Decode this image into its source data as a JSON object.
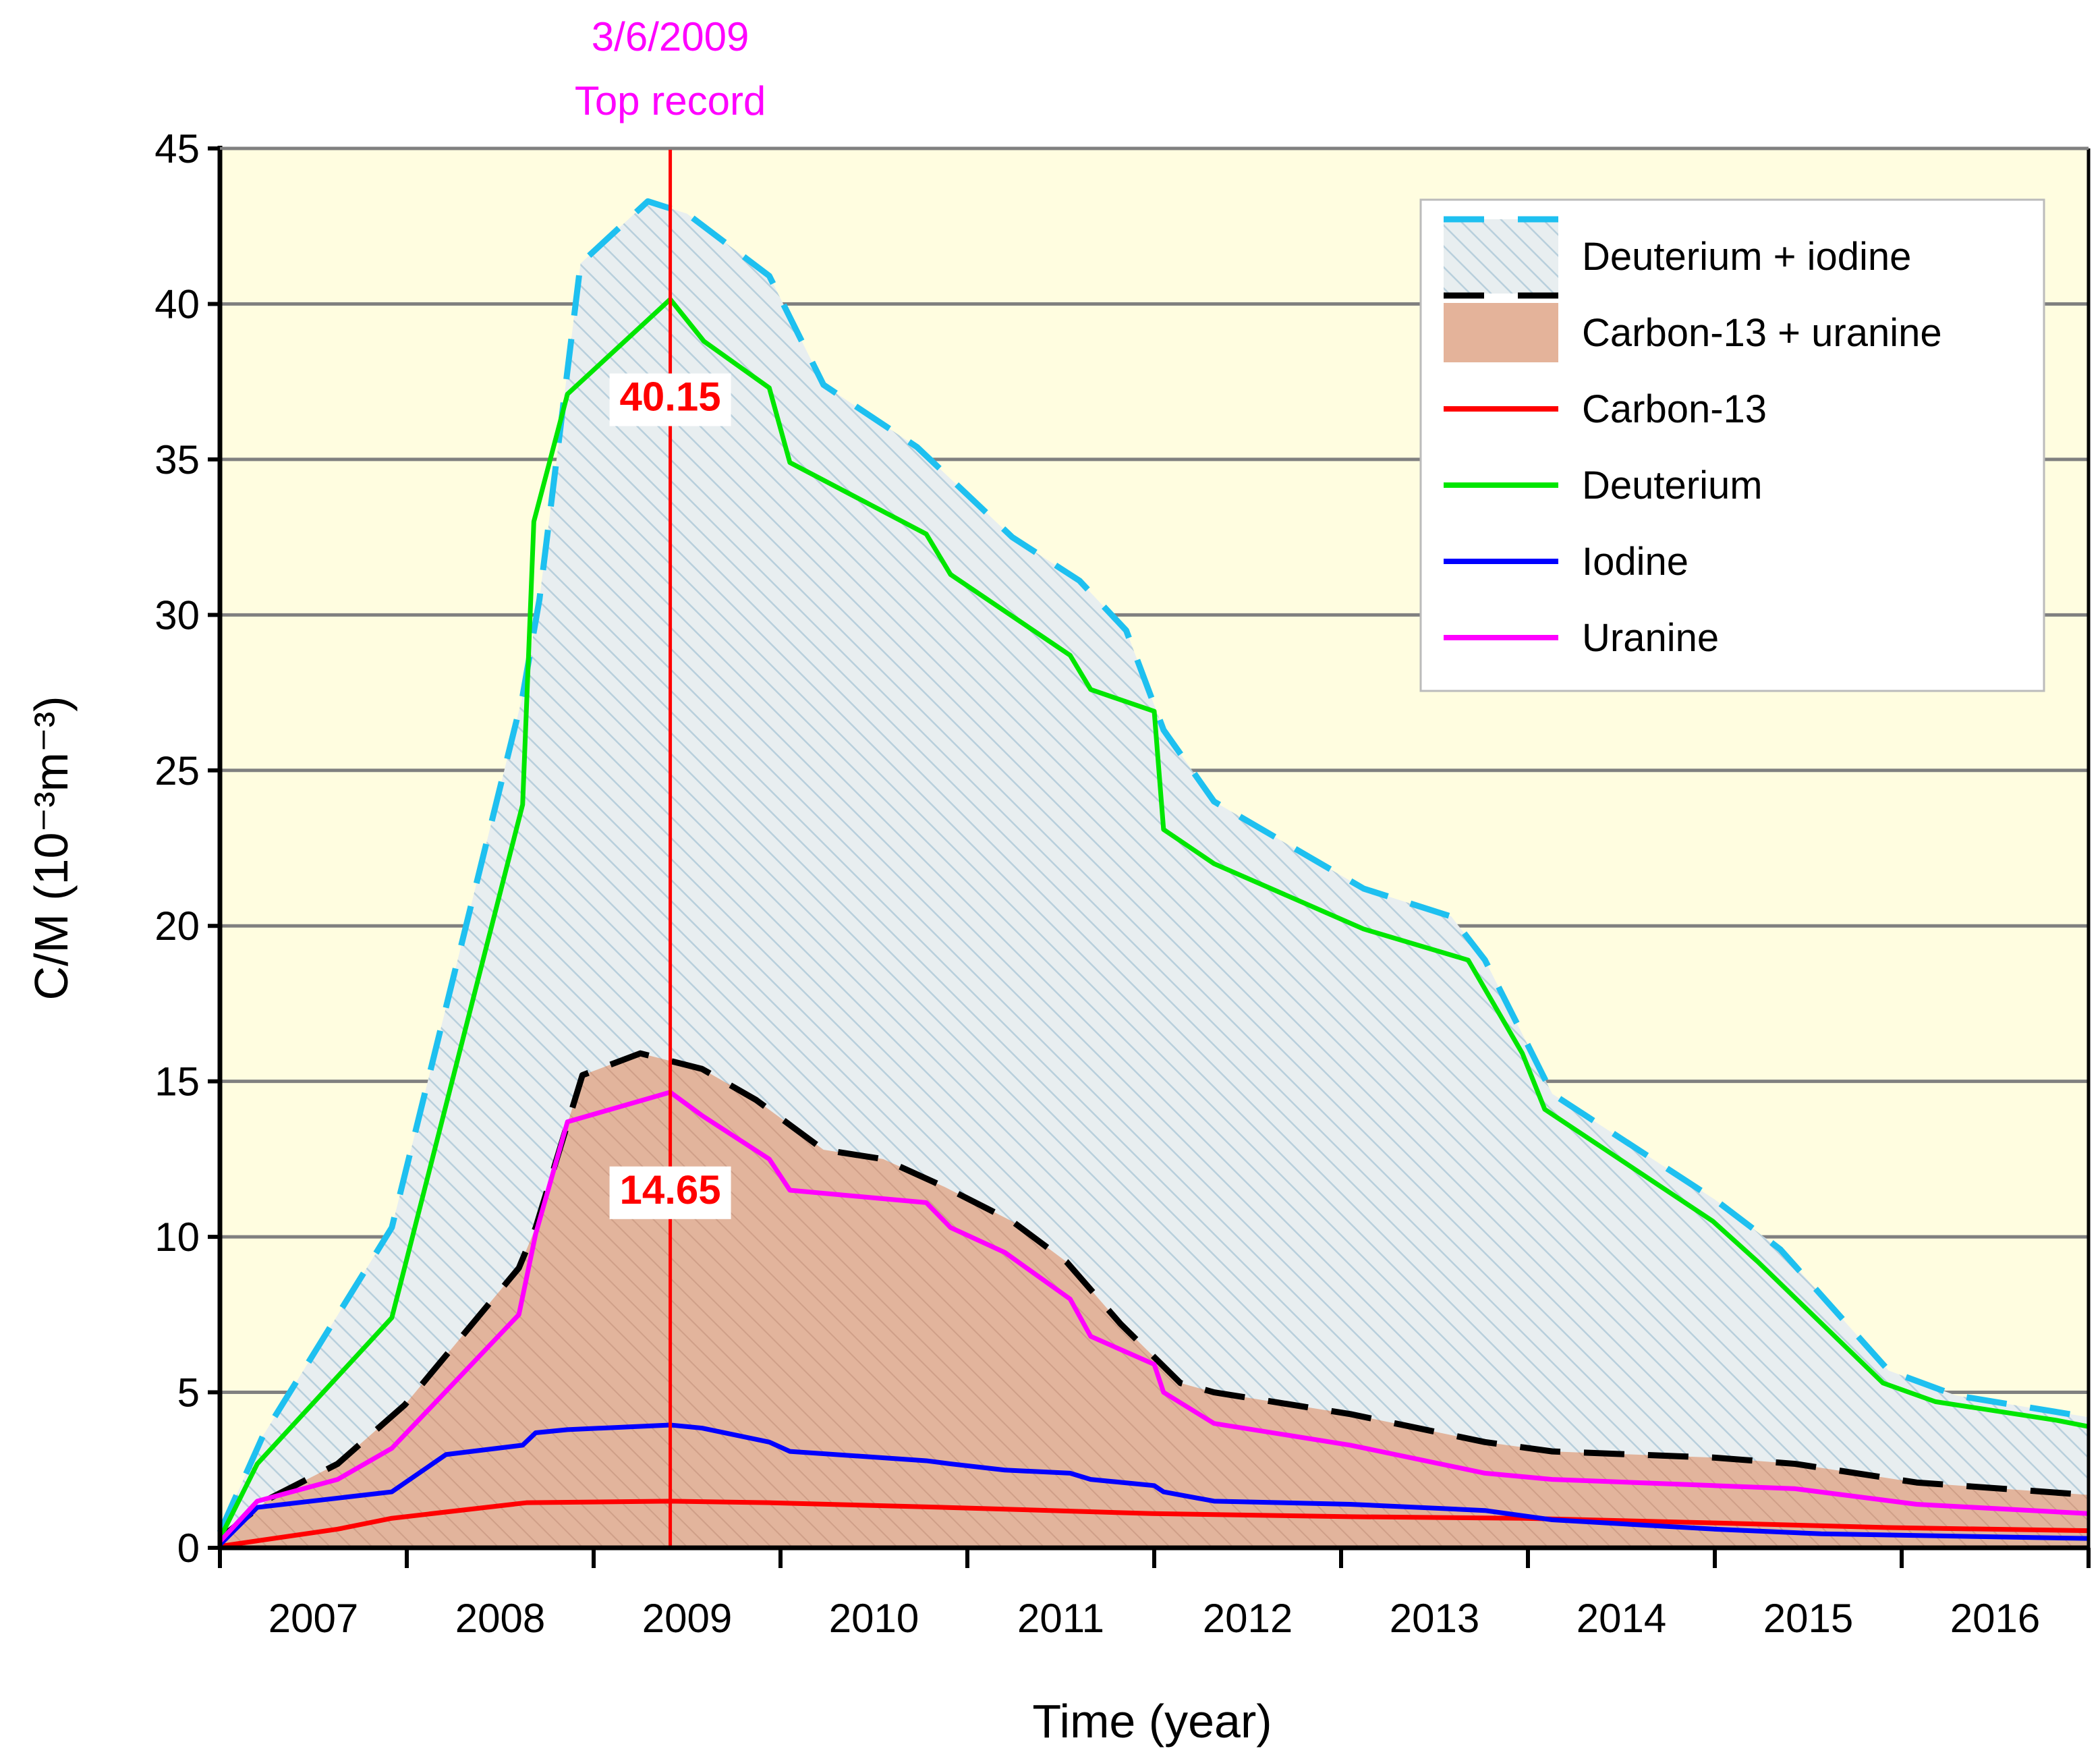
{
  "chart_data": {
    "type": "line",
    "xlabel": "Time (year)",
    "ylabel": "C/M (10⁻³m⁻³)",
    "xlim": [
      2007,
      2017
    ],
    "ylim": [
      0,
      45
    ],
    "yticks": [
      0,
      5,
      10,
      15,
      20,
      25,
      30,
      35,
      40,
      45
    ],
    "xtick_labels": [
      "2007",
      "2008",
      "2009",
      "2010",
      "2011",
      "2012",
      "2013",
      "2014",
      "2015",
      "2016"
    ],
    "grid": "horizontal",
    "legend_position": "top-right",
    "background_color": "#fffde0",
    "annotation": {
      "date": "3/6/2009",
      "label": "Top record",
      "x": 2009.41,
      "color": "#ff00ff",
      "line_color": "#ff0000"
    },
    "point_labels": [
      {
        "text": "40.15",
        "x": 2009.41,
        "y": 40.15
      },
      {
        "text": "14.65",
        "x": 2009.41,
        "y": 14.65
      }
    ],
    "series": [
      {
        "name": "Deuterium + iodine",
        "style": "dashed-area-hatched",
        "color": "#1ec0f0",
        "fill": "#d6e6f0",
        "points": [
          [
            2007.0,
            0.5
          ],
          [
            2007.23,
            3.6
          ],
          [
            2007.92,
            10.3
          ],
          [
            2008.62,
            27.4
          ],
          [
            2008.71,
            30.5
          ],
          [
            2008.93,
            41.3
          ],
          [
            2009.29,
            43.3
          ],
          [
            2009.5,
            42.9
          ],
          [
            2009.94,
            40.9
          ],
          [
            2010.23,
            37.4
          ],
          [
            2010.73,
            35.4
          ],
          [
            2011.24,
            32.5
          ],
          [
            2011.6,
            31.1
          ],
          [
            2011.85,
            29.5
          ],
          [
            2012.05,
            26.3
          ],
          [
            2012.32,
            24.0
          ],
          [
            2013.12,
            21.2
          ],
          [
            2013.59,
            20.3
          ],
          [
            2013.77,
            18.9
          ],
          [
            2013.98,
            16.4
          ],
          [
            2014.13,
            14.6
          ],
          [
            2015.0,
            11.2
          ],
          [
            2015.35,
            9.6
          ],
          [
            2015.93,
            5.7
          ],
          [
            2016.29,
            4.9
          ],
          [
            2017.0,
            4.2
          ]
        ]
      },
      {
        "name": "Carbon-13 + uranine",
        "style": "dashed-area",
        "color": "#000000",
        "fill": "#e4b39a",
        "points": [
          [
            2007.0,
            0.3
          ],
          [
            2007.27,
            1.6
          ],
          [
            2007.63,
            2.7
          ],
          [
            2007.99,
            4.6
          ],
          [
            2008.6,
            9.0
          ],
          [
            2008.69,
            10.3
          ],
          [
            2008.94,
            15.2
          ],
          [
            2009.25,
            15.9
          ],
          [
            2009.58,
            15.4
          ],
          [
            2009.87,
            14.4
          ],
          [
            2010.23,
            12.8
          ],
          [
            2010.55,
            12.5
          ],
          [
            2010.88,
            11.6
          ],
          [
            2011.24,
            10.5
          ],
          [
            2011.53,
            9.2
          ],
          [
            2011.82,
            7.2
          ],
          [
            2012.14,
            5.3
          ],
          [
            2012.32,
            5.0
          ],
          [
            2013.05,
            4.3
          ],
          [
            2013.77,
            3.4
          ],
          [
            2014.13,
            3.1
          ],
          [
            2015.0,
            2.9
          ],
          [
            2015.43,
            2.7
          ],
          [
            2016.08,
            2.1
          ],
          [
            2017.0,
            1.7
          ]
        ]
      },
      {
        "name": "Carbon-13",
        "style": "solid",
        "color": "#ff0000",
        "points": [
          [
            2007.0,
            0.05
          ],
          [
            2007.63,
            0.6
          ],
          [
            2007.92,
            0.95
          ],
          [
            2008.64,
            1.45
          ],
          [
            2009.41,
            1.5
          ],
          [
            2009.94,
            1.45
          ],
          [
            2010.88,
            1.3
          ],
          [
            2011.99,
            1.1
          ],
          [
            2013.05,
            1.0
          ],
          [
            2013.98,
            0.95
          ],
          [
            2015.0,
            0.8
          ],
          [
            2015.93,
            0.65
          ],
          [
            2017.0,
            0.55
          ]
        ]
      },
      {
        "name": "Deuterium",
        "style": "solid",
        "color": "#00e600",
        "points": [
          [
            2007.0,
            0.3
          ],
          [
            2007.2,
            2.7
          ],
          [
            2007.92,
            7.4
          ],
          [
            2008.62,
            23.9
          ],
          [
            2008.68,
            33.0
          ],
          [
            2008.86,
            37.1
          ],
          [
            2009.41,
            40.15
          ],
          [
            2009.59,
            38.8
          ],
          [
            2009.94,
            37.3
          ],
          [
            2010.05,
            34.9
          ],
          [
            2010.78,
            32.6
          ],
          [
            2010.91,
            31.3
          ],
          [
            2011.55,
            28.7
          ],
          [
            2011.66,
            27.6
          ],
          [
            2012.0,
            26.9
          ],
          [
            2012.05,
            23.1
          ],
          [
            2012.32,
            22.0
          ],
          [
            2013.12,
            19.9
          ],
          [
            2013.68,
            18.9
          ],
          [
            2013.97,
            15.9
          ],
          [
            2014.09,
            14.1
          ],
          [
            2014.99,
            10.5
          ],
          [
            2015.23,
            9.2
          ],
          [
            2015.9,
            5.3
          ],
          [
            2016.18,
            4.7
          ],
          [
            2016.83,
            4.1
          ],
          [
            2017.0,
            3.9
          ]
        ]
      },
      {
        "name": "Iodine",
        "style": "solid",
        "color": "#0000ff",
        "points": [
          [
            2007.0,
            0.1
          ],
          [
            2007.2,
            1.3
          ],
          [
            2007.92,
            1.8
          ],
          [
            2008.21,
            3.0
          ],
          [
            2008.62,
            3.3
          ],
          [
            2008.69,
            3.7
          ],
          [
            2008.86,
            3.8
          ],
          [
            2009.41,
            3.95
          ],
          [
            2009.58,
            3.85
          ],
          [
            2009.94,
            3.4
          ],
          [
            2010.05,
            3.1
          ],
          [
            2010.78,
            2.8
          ],
          [
            2010.91,
            2.7
          ],
          [
            2011.2,
            2.5
          ],
          [
            2011.55,
            2.4
          ],
          [
            2011.66,
            2.2
          ],
          [
            2012.0,
            2.0
          ],
          [
            2012.05,
            1.8
          ],
          [
            2012.32,
            1.5
          ],
          [
            2013.05,
            1.4
          ],
          [
            2013.77,
            1.2
          ],
          [
            2014.13,
            0.9
          ],
          [
            2015.0,
            0.6
          ],
          [
            2015.57,
            0.45
          ],
          [
            2017.0,
            0.3
          ]
        ]
      },
      {
        "name": "Uranine",
        "style": "solid",
        "color": "#ff00ff",
        "points": [
          [
            2007.0,
            0.2
          ],
          [
            2007.2,
            1.5
          ],
          [
            2007.63,
            2.2
          ],
          [
            2007.92,
            3.2
          ],
          [
            2008.6,
            7.5
          ],
          [
            2008.69,
            10.1
          ],
          [
            2008.86,
            13.7
          ],
          [
            2009.41,
            14.65
          ],
          [
            2009.58,
            13.9
          ],
          [
            2009.94,
            12.5
          ],
          [
            2010.05,
            11.5
          ],
          [
            2010.78,
            11.1
          ],
          [
            2010.91,
            10.3
          ],
          [
            2011.2,
            9.5
          ],
          [
            2011.55,
            8.0
          ],
          [
            2011.66,
            6.8
          ],
          [
            2012.0,
            5.9
          ],
          [
            2012.05,
            5.0
          ],
          [
            2012.32,
            4.0
          ],
          [
            2013.05,
            3.3
          ],
          [
            2013.77,
            2.4
          ],
          [
            2014.13,
            2.2
          ],
          [
            2015.0,
            2.0
          ],
          [
            2015.43,
            1.9
          ],
          [
            2016.08,
            1.4
          ],
          [
            2017.0,
            1.1
          ]
        ]
      }
    ]
  }
}
